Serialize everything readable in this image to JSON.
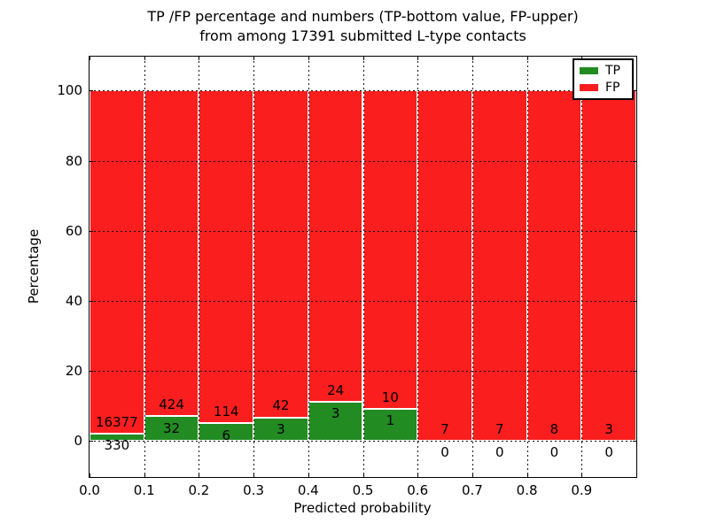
{
  "figure": {
    "title_line1": "TP /FP percentage and numbers (TP-bottom value, FP-upper)",
    "title_line2": "from among 17391 submitted L-type contacts"
  },
  "axes": {
    "xlabel": "Predicted probability",
    "ylabel": "Percentage",
    "xtick_labels": [
      "0.0",
      "0.1",
      "0.2",
      "0.3",
      "0.4",
      "0.5",
      "0.6",
      "0.7",
      "0.8",
      "0.9"
    ],
    "xtick_values": [
      0,
      0.1,
      0.2,
      0.3,
      0.4,
      0.5,
      0.6,
      0.7,
      0.8,
      0.9
    ],
    "ytick_labels": [
      "0",
      "20",
      "40",
      "60",
      "80",
      "100"
    ],
    "ytick_values": [
      0,
      20,
      40,
      60,
      80,
      100
    ],
    "xlim": [
      0,
      1
    ],
    "ylim": [
      -10.3,
      109.7
    ],
    "grid": "dotted"
  },
  "legend": {
    "position": "top-right",
    "items": [
      {
        "label": "TP",
        "color": "#228b22"
      },
      {
        "label": "FP",
        "color": "#fa1e1e"
      }
    ]
  },
  "colors": {
    "tp": "#228b22",
    "fp": "#fa1e1e",
    "bar_edge": "#ffffff",
    "grid": "#111111",
    "text": "#000000",
    "background": "#ffffff"
  },
  "chart_data": {
    "type": "bar",
    "stacked": true,
    "normalized_to": 100,
    "title": "TP /FP percentage and numbers (TP-bottom value, FP-upper) from among 17391 submitted L-type contacts",
    "xlabel": "Predicted probability",
    "ylabel": "Percentage",
    "total_contacts": 17391,
    "bin_edges": [
      0.0,
      0.1,
      0.2,
      0.3,
      0.4,
      0.5,
      0.6,
      0.7,
      0.8,
      0.9,
      1.0
    ],
    "series": [
      {
        "name": "TP",
        "color": "#228b22",
        "counts": [
          330,
          32,
          6,
          3,
          3,
          1,
          0,
          0,
          0,
          0
        ]
      },
      {
        "name": "FP",
        "color": "#fa1e1e",
        "counts": [
          16377,
          424,
          114,
          42,
          24,
          10,
          7,
          7,
          8,
          3
        ]
      }
    ],
    "tp_percent": [
      1.98,
      7.02,
      5.0,
      6.67,
      11.11,
      9.09,
      0,
      0,
      0,
      0
    ],
    "fp_percent": [
      98.02,
      92.98,
      95.0,
      93.33,
      88.89,
      90.91,
      100,
      100,
      100,
      100
    ],
    "legend_position": "upper right",
    "grid": true
  }
}
